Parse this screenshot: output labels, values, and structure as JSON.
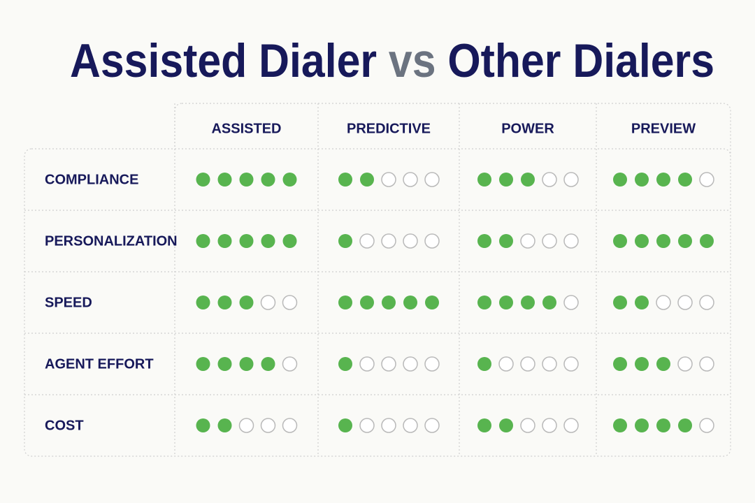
{
  "title": {
    "main": "Assisted Dialer",
    "vs": "vs",
    "other": "Other Dialers"
  },
  "table": {
    "columns": [
      "ASSISTED",
      "PREDICTIVE",
      "POWER",
      "PREVIEW"
    ],
    "max_rating": 5,
    "rows": [
      {
        "label": "COMPLIANCE",
        "ratings": [
          5,
          2,
          3,
          4
        ]
      },
      {
        "label": "PERSONALIZATION",
        "ratings": [
          5,
          1,
          2,
          5
        ]
      },
      {
        "label": "SPEED",
        "ratings": [
          3,
          5,
          4,
          2
        ]
      },
      {
        "label": "AGENT EFFORT",
        "ratings": [
          4,
          1,
          1,
          3
        ]
      },
      {
        "label": "COST",
        "ratings": [
          2,
          1,
          2,
          4
        ]
      }
    ]
  }
}
